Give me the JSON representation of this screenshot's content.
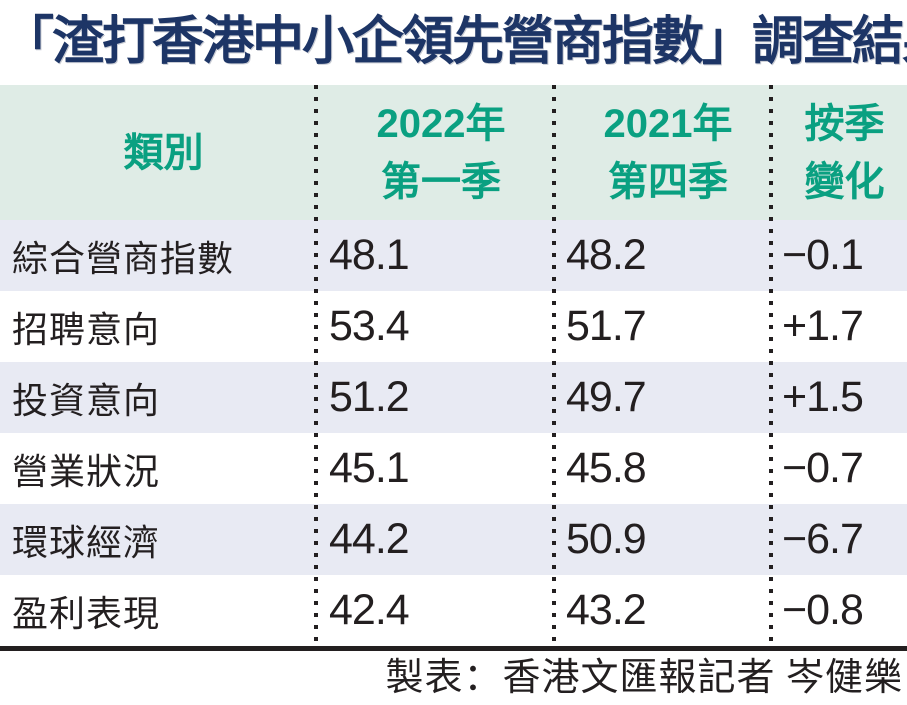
{
  "title": "「渣打香港中小企領先營商指數」調查結果",
  "table": {
    "header": {
      "col_category": {
        "line1": "類別",
        "line2": ""
      },
      "col_2022q1": {
        "line1": "2022年",
        "line2": "第一季"
      },
      "col_2021q4": {
        "line1": "2021年",
        "line2": "第四季"
      },
      "col_change": {
        "line1": "按季",
        "line2": "變化"
      }
    },
    "rows": [
      {
        "category": "綜合營商指數",
        "q1_2022": "48.1",
        "q4_2021": "48.2",
        "change": "−0.1"
      },
      {
        "category": "招聘意向",
        "q1_2022": "53.4",
        "q4_2021": "51.7",
        "change": "+1.7"
      },
      {
        "category": "投資意向",
        "q1_2022": "51.2",
        "q4_2021": "49.7",
        "change": "+1.5"
      },
      {
        "category": "營業狀況",
        "q1_2022": "45.1",
        "q4_2021": "45.8",
        "change": "−0.7"
      },
      {
        "category": "環球經濟",
        "q1_2022": "44.2",
        "q4_2021": "50.9",
        "change": "−6.7"
      },
      {
        "category": "盈利表現",
        "q1_2022": "42.4",
        "q4_2021": "43.2",
        "change": "−0.8"
      }
    ]
  },
  "footer": {
    "credit": "製表：香港文匯報記者 岑健樂"
  },
  "colors": {
    "title_navy": "#1d3566",
    "header_teal": "#0aa081",
    "header_bg": "#dfece6",
    "row_alt_bg": "#e8eaf3",
    "text_black": "#231f20",
    "dotted_separator": "#231f20"
  },
  "chart_data": {
    "type": "table",
    "title": "「渣打香港中小企領先營商指數」調查結果",
    "columns": [
      "類別",
      "2022年第一季",
      "2021年第四季",
      "按季變化"
    ],
    "rows": [
      {
        "category": "綜合營商指數",
        "q1_2022": 48.1,
        "q4_2021": 48.2,
        "qoq_change": -0.1
      },
      {
        "category": "招聘意向",
        "q1_2022": 53.4,
        "q4_2021": 51.7,
        "qoq_change": 1.7
      },
      {
        "category": "投資意向",
        "q1_2022": 51.2,
        "q4_2021": 49.7,
        "qoq_change": 1.5
      },
      {
        "category": "營業狀況",
        "q1_2022": 45.1,
        "q4_2021": 45.8,
        "qoq_change": -0.7
      },
      {
        "category": "環球經濟",
        "q1_2022": 44.2,
        "q4_2021": 50.9,
        "qoq_change": -6.7
      },
      {
        "category": "盈利表現",
        "q1_2022": 42.4,
        "q4_2021": 43.2,
        "qoq_change": -0.8
      }
    ],
    "credit": "製表：香港文匯報記者 岑健樂"
  }
}
